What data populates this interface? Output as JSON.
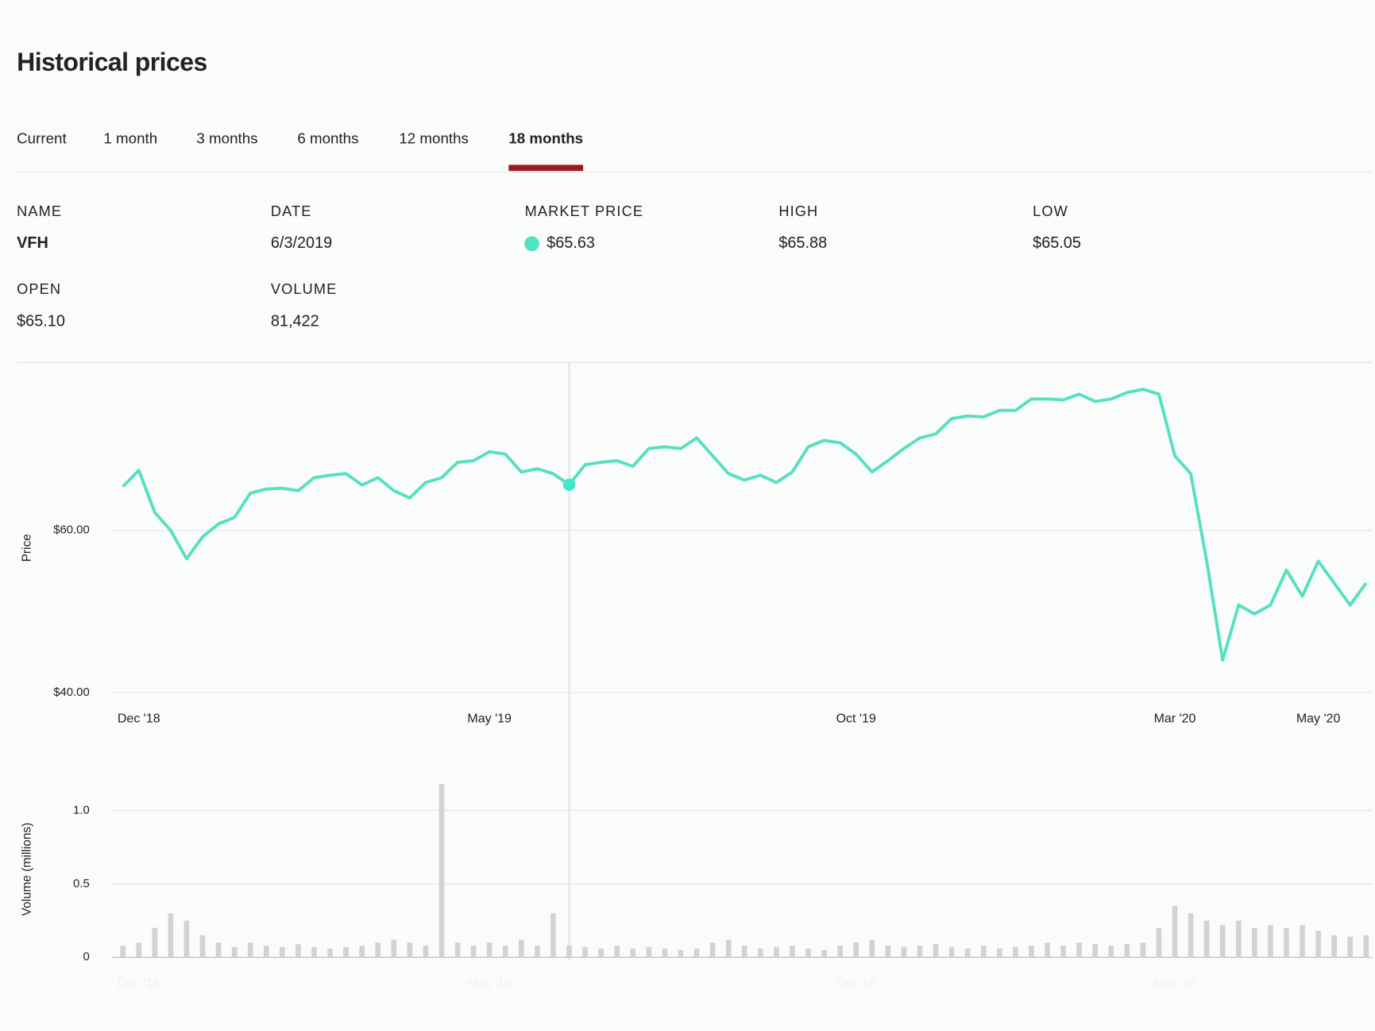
{
  "header": {
    "title": "Historical prices"
  },
  "tabs": [
    {
      "label": "Current"
    },
    {
      "label": "1 month"
    },
    {
      "label": "3 months"
    },
    {
      "label": "6 months"
    },
    {
      "label": "12 months"
    },
    {
      "label": "18 months",
      "selected": true
    }
  ],
  "info": {
    "fields": [
      {
        "label": "NAME",
        "value": "VFH"
      },
      {
        "label": "DATE",
        "value": "6/3/2019"
      },
      {
        "label": "MARKET PRICE",
        "value": "$65.63",
        "color": "#4fe3c4"
      },
      {
        "label": "HIGH",
        "value": "$65.88"
      },
      {
        "label": "LOW",
        "value": "$65.05"
      },
      {
        "label": "OPEN",
        "value": "$65.10"
      },
      {
        "label": "VOLUME",
        "value": "81,422"
      }
    ]
  },
  "chart_data": [
    {
      "type": "line",
      "y_label": "Price",
      "color": "#55e0c0",
      "selected_index": 28,
      "grid": true,
      "categories": [
        null,
        "Dec '18",
        null,
        null,
        null,
        null,
        null,
        null,
        null,
        null,
        null,
        null,
        null,
        null,
        null,
        null,
        null,
        null,
        null,
        null,
        null,
        null,
        null,
        "May '19",
        null,
        null,
        null,
        null,
        null,
        null,
        null,
        null,
        null,
        null,
        null,
        null,
        null,
        null,
        null,
        null,
        null,
        null,
        null,
        null,
        null,
        null,
        "Oct '19",
        null,
        null,
        null,
        null,
        null,
        null,
        null,
        null,
        null,
        null,
        null,
        null,
        null,
        null,
        null,
        null,
        null,
        null,
        null,
        "Mar '20",
        null,
        null,
        null,
        null,
        null,
        null,
        null,
        null,
        "May '20",
        null,
        null,
        null
      ],
      "values": [
        65.4,
        67.4,
        62.2,
        60,
        56.5,
        59.2,
        60.8,
        61.6,
        64.6,
        65.1,
        65.2,
        64.9,
        66.5,
        66.8,
        67,
        65.6,
        66.5,
        64.9,
        64,
        65.9,
        66.5,
        68.4,
        68.6,
        69.7,
        69.4,
        67.2,
        67.6,
        67,
        65.63,
        68.1,
        68.4,
        68.6,
        67.9,
        70.1,
        70.3,
        70.1,
        71.4,
        69.2,
        67,
        66.2,
        66.8,
        65.9,
        67.2,
        70.3,
        71.1,
        70.8,
        69.4,
        67.2,
        68.6,
        70.1,
        71.4,
        71.9,
        73.8,
        74.1,
        74,
        74.8,
        74.8,
        76.2,
        76.2,
        76.1,
        76.8,
        75.9,
        76.2,
        77,
        77.4,
        76.8,
        69.2,
        67,
        56.2,
        44,
        50.8,
        49.7,
        50.8,
        55.1,
        51.9,
        56.2,
        53.5,
        50.8,
        53.5
      ],
      "ylim": [
        40,
        80
      ],
      "yticks": [
        {
          "value": 40,
          "label": "$40.00"
        },
        {
          "value": 60,
          "label": "$60.00"
        }
      ]
    },
    {
      "type": "bar",
      "y_label": "Volume (millions)",
      "color": "#d2d2d2",
      "grid": true,
      "categories": [
        null,
        "Dec '18",
        null,
        null,
        null,
        null,
        null,
        null,
        null,
        null,
        null,
        null,
        null,
        null,
        null,
        null,
        null,
        null,
        null,
        null,
        null,
        null,
        null,
        "May '19",
        null,
        null,
        null,
        null,
        null,
        null,
        null,
        null,
        null,
        null,
        null,
        null,
        null,
        null,
        null,
        null,
        null,
        null,
        null,
        null,
        null,
        null,
        "Oct '19",
        null,
        null,
        null,
        null,
        null,
        null,
        null,
        null,
        null,
        null,
        null,
        null,
        null,
        null,
        null,
        null,
        null,
        null,
        null,
        "Mar '20",
        null,
        null,
        null,
        null,
        null,
        null,
        null,
        null,
        null,
        null,
        null,
        null
      ],
      "values": [
        0.08,
        0.1,
        0.2,
        0.3,
        0.25,
        0.15,
        0.1,
        0.07,
        0.1,
        0.08,
        0.07,
        0.09,
        0.07,
        0.06,
        0.07,
        0.08,
        0.1,
        0.12,
        0.1,
        0.08,
        1.18,
        0.1,
        0.08,
        0.1,
        0.08,
        0.12,
        0.08,
        0.3,
        0.08,
        0.07,
        0.06,
        0.08,
        0.06,
        0.07,
        0.06,
        0.05,
        0.06,
        0.1,
        0.12,
        0.08,
        0.06,
        0.07,
        0.08,
        0.06,
        0.05,
        0.08,
        0.1,
        0.12,
        0.08,
        0.07,
        0.08,
        0.09,
        0.07,
        0.06,
        0.08,
        0.06,
        0.07,
        0.08,
        0.1,
        0.08,
        0.1,
        0.09,
        0.08,
        0.09,
        0.1,
        0.2,
        0.35,
        0.3,
        0.25,
        0.22,
        0.25,
        0.2,
        0.22,
        0.2,
        0.22,
        0.18,
        0.15,
        0.14,
        0.15
      ],
      "ylim": [
        0,
        1.2
      ],
      "yticks": [
        0,
        0.5,
        {
          "value": 1,
          "label": "1.0"
        }
      ]
    }
  ]
}
